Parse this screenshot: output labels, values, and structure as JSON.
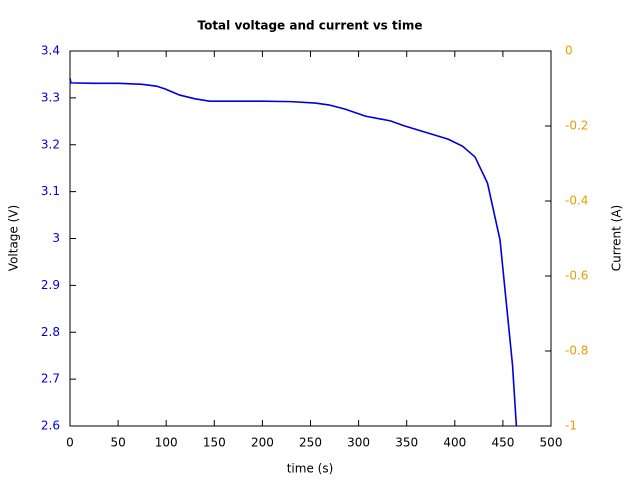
{
  "chart_data": {
    "type": "line",
    "title": "Total voltage and current vs time",
    "x_label": "time (s)",
    "y_label": "Voltage (V)",
    "y2_label": "Current (A)",
    "x": [
      0,
      1,
      25,
      50,
      75,
      90,
      99,
      114,
      130,
      145,
      175,
      200,
      230,
      255,
      269,
      286,
      307,
      333,
      348,
      369,
      393,
      408,
      421,
      434,
      447,
      460,
      464
    ],
    "series": [
      {
        "name": "Voltage",
        "color": "#0000dd",
        "values": [
          3.342,
          3.332,
          3.331,
          3.331,
          3.329,
          3.325,
          3.319,
          3.306,
          3.298,
          3.293,
          3.293,
          3.293,
          3.292,
          3.289,
          3.285,
          3.276,
          3.261,
          3.251,
          3.24,
          3.227,
          3.212,
          3.197,
          3.174,
          3.118,
          2.997,
          2.73,
          2.6
        ]
      }
    ],
    "xlim": [
      0,
      500
    ],
    "xticks": [
      0,
      50,
      100,
      150,
      200,
      250,
      300,
      350,
      400,
      450,
      500
    ],
    "ylim": [
      2.6,
      3.4
    ],
    "yticks": [
      2.6,
      2.7,
      2.8,
      2.9,
      3,
      3.1,
      3.2,
      3.3,
      3.4
    ],
    "y2lim": [
      -1,
      0
    ],
    "y2ticks": [
      -1,
      -0.8,
      -0.6,
      -0.4,
      -0.2,
      0
    ],
    "y_color": "#0000dd",
    "y2_color": "#e69f00"
  }
}
